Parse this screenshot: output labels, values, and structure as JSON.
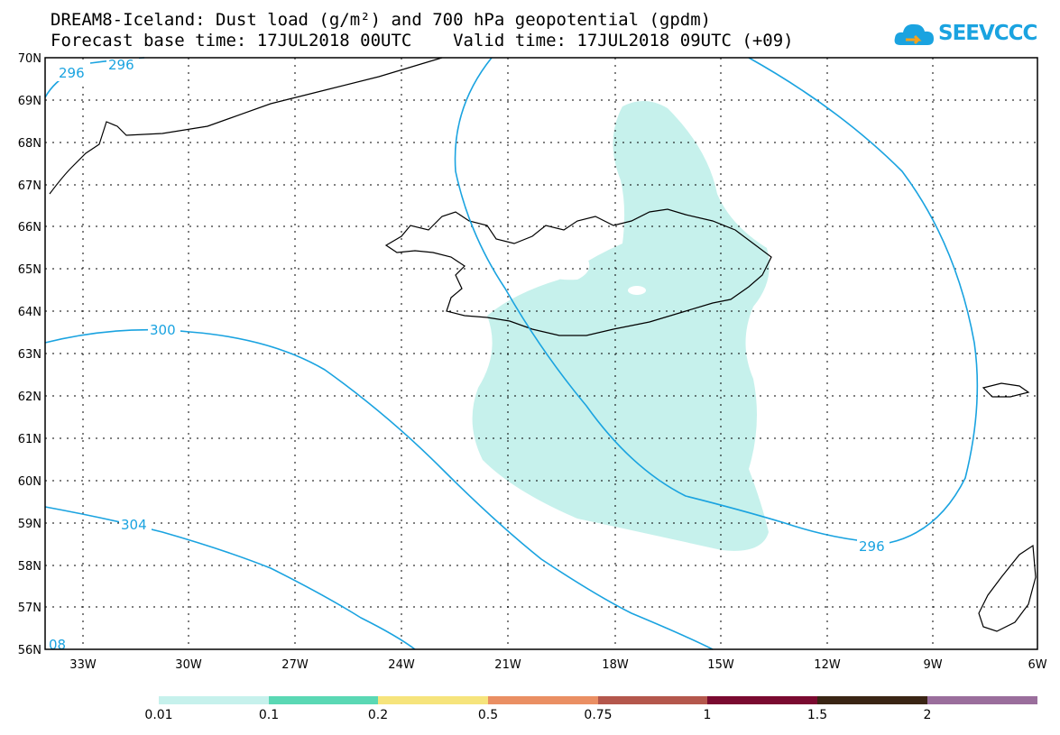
{
  "title": {
    "line1": "DREAM8-Iceland: Dust load (g/m²) and 700 hPa geopotential (gpdm)",
    "line2": "Forecast base time: 17JUL2018 00UTC    Valid time: 17JUL2018 09UTC (+09)"
  },
  "logo": {
    "text": "SEEVCCC",
    "icon": "cloud-arrow-icon"
  },
  "axes": {
    "lat_labels": [
      "70N",
      "69N",
      "68N",
      "67N",
      "66N",
      "65N",
      "64N",
      "63N",
      "62N",
      "61N",
      "60N",
      "59N",
      "58N",
      "57N",
      "56N"
    ],
    "lon_labels": [
      "33W",
      "30W",
      "27W",
      "24W",
      "21W",
      "18W",
      "15W",
      "12W",
      "9W",
      "6W"
    ]
  },
  "contours": [
    {
      "value": "296"
    },
    {
      "value": "296"
    },
    {
      "value": "300"
    },
    {
      "value": "304"
    },
    {
      "value": "296"
    },
    {
      "value": "08"
    }
  ],
  "colorbar": {
    "labels": [
      "0.01",
      "0.1",
      "0.2",
      "0.5",
      "0.75",
      "1",
      "1.5",
      "2"
    ],
    "colors": [
      "#c6f1ec",
      "#5ad8b4",
      "#f6e47c",
      "#ea8f63",
      "#b4574c",
      "#7a0a30",
      "#3a2514",
      "#9a6e9c"
    ]
  },
  "colors": {
    "contour": "#1aa3e0",
    "dust": "#c6f1ec",
    "coast": "#000000"
  }
}
